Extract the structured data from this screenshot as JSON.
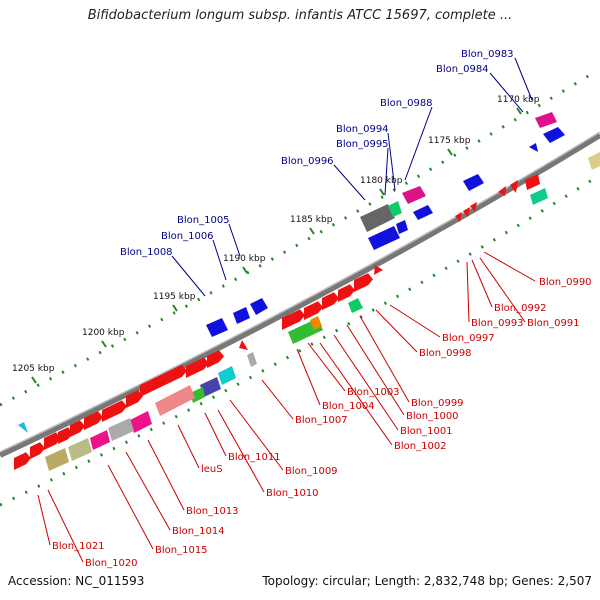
{
  "title": "Bifidobacterium longum subsp. infantis ATCC 15697, complete ...",
  "accession": "Accession: NC_011593",
  "topology": "Topology: circular; Length: 2,832,748 bp; Genes: 2,507",
  "colors": {
    "upper_label": "#00008b",
    "lower_label": "#cc0000",
    "forward_gene": "#0000dd",
    "reverse_gene": "#ee1111",
    "tick": "#228822",
    "backbone": "#777777"
  },
  "scale_ticks": [
    "1170 kbp",
    "1175 kbp",
    "1180 kbp",
    "1185 kbp",
    "1190 kbp",
    "1195 kbp",
    "1200 kbp",
    "1205 kbp"
  ],
  "upper_labels": [
    "Blon_0983",
    "Blon_0984",
    "Blon_0988",
    "Blon_0994",
    "Blon_0995",
    "Blon_0996",
    "Blon_1005",
    "Blon_1006",
    "Blon_1008"
  ],
  "lower_labels": [
    "Blon_0990",
    "Blon_0991",
    "Blon_0992",
    "Blon_0993",
    "Blon_0997",
    "Blon_0998",
    "Blon_0999",
    "Blon_1000",
    "Blon_1001",
    "Blon_1002",
    "Blon_1003",
    "Blon_1004",
    "Blon_1007",
    "Blon_1009",
    "Blon_1010",
    "Blon_1011",
    "leuS",
    "Blon_1013",
    "Blon_1014",
    "Blon_1015",
    "Blon_1020",
    "Blon_1021"
  ]
}
